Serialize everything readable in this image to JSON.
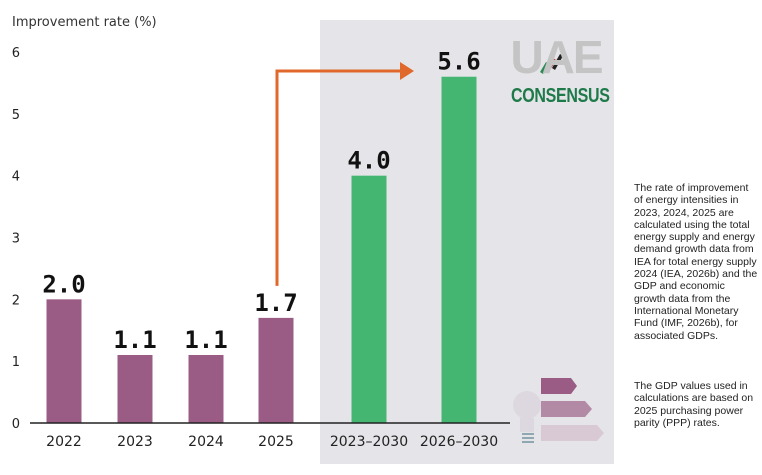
{
  "chart_data": {
    "type": "bar",
    "ylabel": "Improvement rate (%)",
    "ylim": [
      0,
      6
    ],
    "yticks": [
      0,
      1,
      2,
      3,
      4,
      5,
      6
    ],
    "categories": [
      "2022",
      "2023",
      "2024",
      "2025",
      "2023–2030",
      "2026–2030"
    ],
    "values": [
      2.0,
      1.1,
      1.1,
      1.7,
      4.0,
      5.6
    ],
    "value_labels": [
      "2.0",
      "1.1",
      "1.1",
      "1.7",
      "4.0",
      "5.6"
    ],
    "colors": [
      "#9a5c84",
      "#9a5c84",
      "#9a5c84",
      "#9a5c84",
      "#45b572",
      "#45b572"
    ],
    "shaded_region_categories": [
      "2023–2030",
      "2026–2030"
    ],
    "shade_color": "#e5e5e9",
    "arrow": {
      "from": "2025",
      "to": "2026–2030",
      "color": "#e0682b"
    },
    "grid": false
  },
  "logo": {
    "line1": "UAE",
    "line2": "CONSENSUS"
  },
  "notes": {
    "paragraph1": "The rate of improvement of energy intensities in 2023, 2024, 2025 are calculated using the total energy supply and energy demand growth data from IEA for total energy supply 2024 (IEA, 2026b) and the GDP and economic growth data from the International Monetary Fund (IMF, 2026b), for associated GDPs.",
    "paragraph2": "The GDP values used in calculations are based on 2025 purchasing power parity (PPP) rates."
  }
}
